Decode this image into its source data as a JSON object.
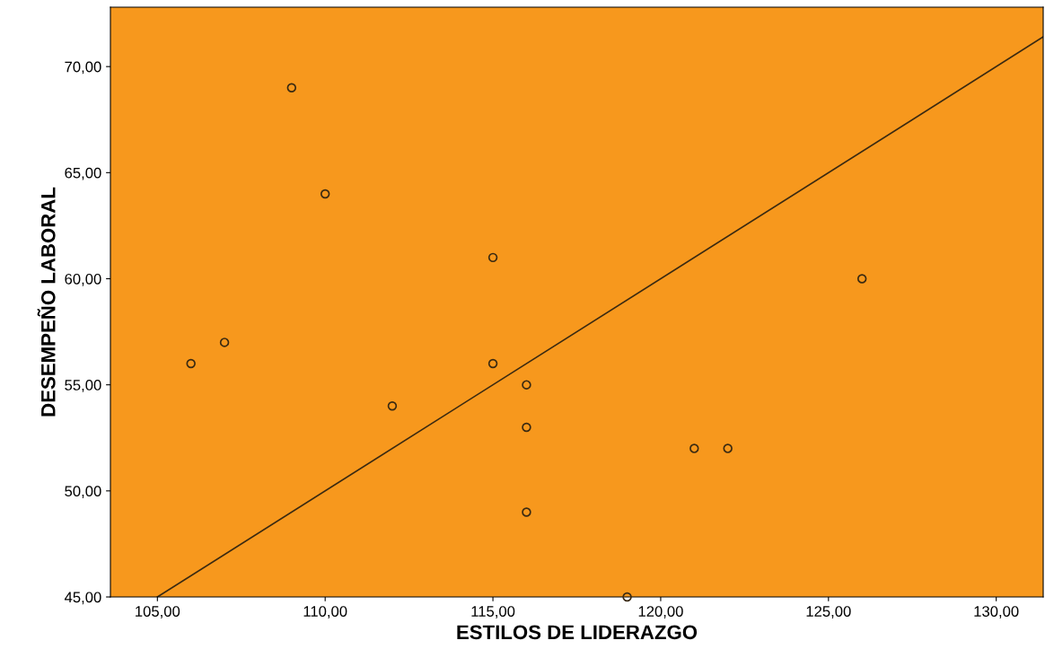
{
  "chart_data": {
    "type": "scatter",
    "xlabel": "ESTILOS DE LIDERAZGO",
    "ylabel": "DESEMPEÑO LABORAL",
    "series": [
      {
        "color": "#3a2a12",
        "marker": "circle",
        "x": [
          106,
          107,
          109,
          110,
          112,
          115,
          115,
          116,
          116,
          116,
          119,
          121,
          122,
          126
        ],
        "values": [
          56,
          57,
          69,
          64,
          54,
          61,
          56,
          55,
          53,
          49,
          45,
          52,
          52,
          60
        ]
      },
      {
        "type": "line",
        "color": "#3a2a12",
        "marker": "none",
        "line_style": "solid",
        "x": [
          105,
          131.4
        ],
        "values": [
          45,
          71.4
        ]
      }
    ],
    "xlim": [
      103.6,
      131.4
    ],
    "ylim": [
      45,
      72.8
    ],
    "xticks": [
      {
        "value": 105,
        "label": "105,00"
      },
      {
        "value": 110,
        "label": "110,00"
      },
      {
        "value": 115,
        "label": "115,00"
      },
      {
        "value": 120,
        "label": "120,00"
      },
      {
        "value": 125,
        "label": "125,00"
      },
      {
        "value": 130,
        "label": "130,00"
      }
    ],
    "yticks": [
      {
        "value": 45,
        "label": "45,00"
      },
      {
        "value": 50,
        "label": "50,00"
      },
      {
        "value": 55,
        "label": "55,00"
      },
      {
        "value": 60,
        "label": "60,00"
      },
      {
        "value": 65,
        "label": "65,00"
      },
      {
        "value": 70,
        "label": "70,00"
      }
    ],
    "grid": false,
    "legend": false
  }
}
